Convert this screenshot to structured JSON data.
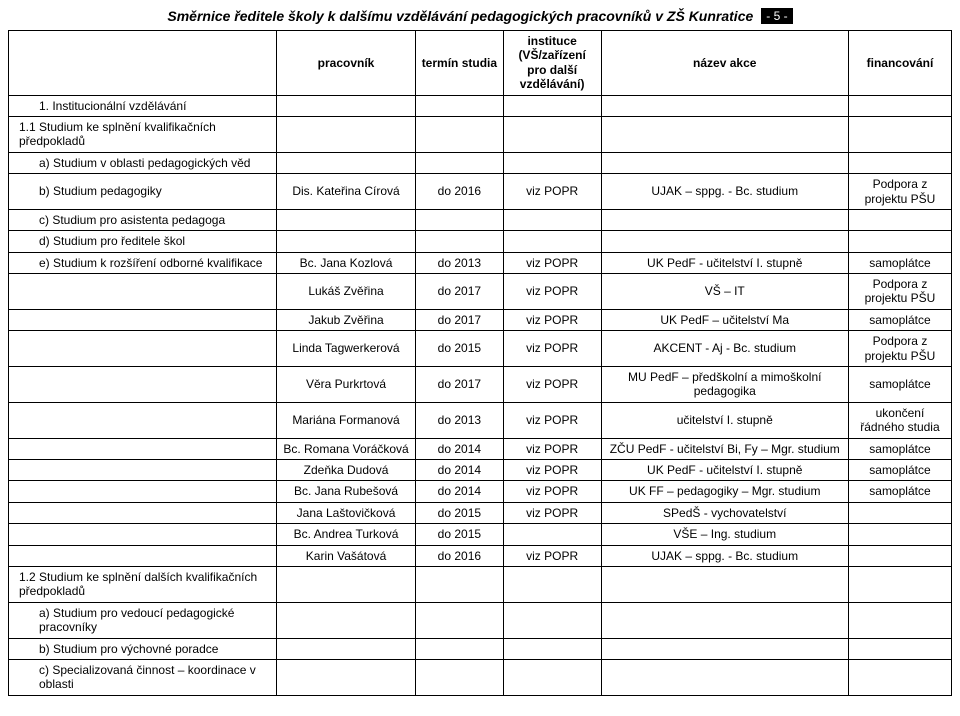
{
  "page": {
    "title": "Směrnice ředitele školy k dalšímu vzdělávání pedagogických pracovníků v ZŠ Kunratice",
    "pageno": "- 5 -"
  },
  "headers": {
    "c1": "",
    "c2": "pracovník",
    "c3": "termín studia",
    "c4": "instituce (VŠ/zařízení pro další vzdělávání)",
    "c5": "název akce",
    "c6": "financování"
  },
  "rows": [
    {
      "c1": "1. Institucionální vzdělávání",
      "c1class": "sub",
      "c2": "",
      "c3": "",
      "c4": "",
      "c5": "",
      "c6": ""
    },
    {
      "c1": "1.1 Studium ke splnění kvalifikačních předpokladů",
      "c2": "",
      "c3": "",
      "c4": "",
      "c5": "",
      "c6": ""
    },
    {
      "c1": "a) Studium v oblasti pedagogických věd",
      "c1class": "sub",
      "c2": "",
      "c3": "",
      "c4": "",
      "c5": "",
      "c6": ""
    },
    {
      "c1": "b) Studium pedagogiky",
      "c1class": "sub",
      "c2": "Dis. Kateřina Círová",
      "c3": "do 2016",
      "c4": "viz POPR",
      "c5": "UJAK – sppg. - Bc. studium",
      "c6": "Podpora z projektu PŠU"
    },
    {
      "c1": "c) Studium pro asistenta pedagoga",
      "c1class": "sub",
      "c2": "",
      "c3": "",
      "c4": "",
      "c5": "",
      "c6": ""
    },
    {
      "c1": "d) Studium pro ředitele škol",
      "c1class": "sub",
      "c2": "",
      "c3": "",
      "c4": "",
      "c5": "",
      "c6": ""
    },
    {
      "c1": "e) Studium k rozšíření odborné kvalifikace",
      "c1class": "sub",
      "c2": "Bc. Jana Kozlová",
      "c3": "do 2013",
      "c4": "viz POPR",
      "c5": "UK PedF - učitelství I. stupně",
      "c6": "samoplátce"
    },
    {
      "c1": "",
      "c2": "Lukáš Zvěřina",
      "c3": "do 2017",
      "c4": "viz POPR",
      "c5": "VŠ – IT",
      "c6": "Podpora z projektu PŠU"
    },
    {
      "c1": "",
      "c2": "Jakub Zvěřina",
      "c3": "do 2017",
      "c4": "viz POPR",
      "c5": "UK PedF – učitelství Ma",
      "c6": "samoplátce"
    },
    {
      "c1": "",
      "c2": "Linda Tagwerkerová",
      "c3": "do 2015",
      "c4": "viz POPR",
      "c5": "AKCENT - Aj - Bc. studium",
      "c6": "Podpora z projektu PŠU"
    },
    {
      "c1": "",
      "c2": "Věra Purkrtová",
      "c3": "do 2017",
      "c4": "viz POPR",
      "c5": "MU PedF – předškolní a mimoškolní pedagogika",
      "c6": "samoplátce"
    },
    {
      "c1": "",
      "c2": "Mariána Formanová",
      "c3": "do 2013",
      "c4": "viz POPR",
      "c5": "učitelství I. stupně",
      "c6": "ukončení řádného studia"
    },
    {
      "c1": "",
      "c2": "Bc. Romana Voráčková",
      "c3": "do 2014",
      "c4": "viz POPR",
      "c5": "ZČU PedF - učitelství Bi, Fy – Mgr. studium",
      "c6": "samoplátce"
    },
    {
      "c1": "",
      "c2": "Zdeňka Dudová",
      "c3": "do 2014",
      "c4": "viz POPR",
      "c5": "UK PedF - učitelství I. stupně",
      "c6": "samoplátce"
    },
    {
      "c1": "",
      "c2": "Bc. Jana Rubešová",
      "c3": "do 2014",
      "c4": "viz POPR",
      "c5": "UK FF – pedagogiky – Mgr. studium",
      "c6": "samoplátce"
    },
    {
      "c1": "",
      "c2": "Jana Laštovičková",
      "c3": "do 2015",
      "c4": "viz POPR",
      "c5": "SPedŠ - vychovatelství",
      "c6": ""
    },
    {
      "c1": "",
      "c2": "Bc. Andrea Turková",
      "c3": "do 2015",
      "c4": "",
      "c5": "VŠE – Ing. studium",
      "c6": ""
    },
    {
      "c1": "",
      "c2": "Karin Vašátová",
      "c3": "do 2016",
      "c4": "viz POPR",
      "c5": "UJAK – sppg. - Bc. studium",
      "c6": ""
    },
    {
      "c1": "1.2 Studium ke splnění dalších kvalifikačních předpokladů",
      "c2": "",
      "c3": "",
      "c4": "",
      "c5": "",
      "c6": ""
    },
    {
      "c1": "a) Studium pro vedoucí pedagogické pracovníky",
      "c1class": "sub",
      "c2": "",
      "c3": "",
      "c4": "",
      "c5": "",
      "c6": ""
    },
    {
      "c1": "b) Studium pro výchovné poradce",
      "c1class": "sub",
      "c2": "",
      "c3": "",
      "c4": "",
      "c5": "",
      "c6": ""
    },
    {
      "c1": "c) Specializovaná činnost – koordinace v oblasti",
      "c1class": "sub",
      "c2": "",
      "c3": "",
      "c4": "",
      "c5": "",
      "c6": ""
    }
  ]
}
